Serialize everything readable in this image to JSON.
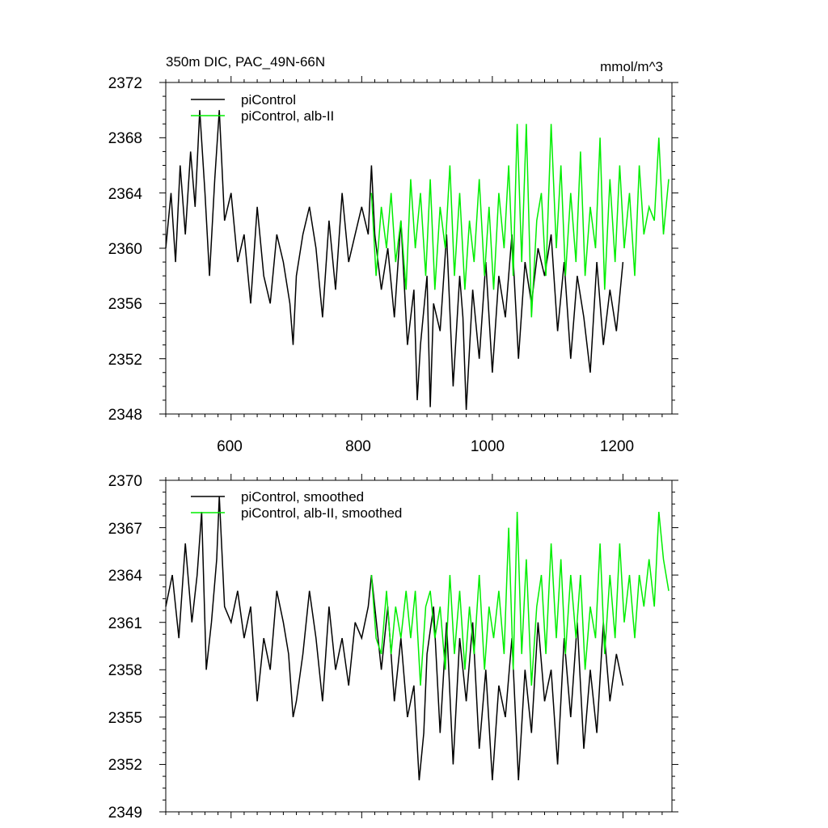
{
  "chart_data": [
    {
      "type": "line",
      "title": "350m DIC, PAC_49N-66N",
      "units": "mmol/m^3",
      "xlim": [
        500,
        1275
      ],
      "ylim": [
        2348,
        2372
      ],
      "x_ticks": [
        600,
        800,
        1000,
        1200
      ],
      "x_tick_labels": [
        "600",
        "800",
        "1000",
        "1200"
      ],
      "y_ticks": [
        2348,
        2352,
        2356,
        2360,
        2364,
        2368,
        2372
      ],
      "y_tick_labels": [
        "2348",
        "2352",
        "2356",
        "2360",
        "2364",
        "2368",
        "2372"
      ],
      "legend_position": "top-left",
      "series": [
        {
          "name": "piControl",
          "color": "#000000",
          "x_range": [
            500,
            1200
          ],
          "x": [
            500,
            508,
            515,
            522,
            530,
            538,
            545,
            552,
            560,
            567,
            575,
            582,
            590,
            600,
            610,
            620,
            630,
            640,
            650,
            660,
            670,
            680,
            690,
            695,
            700,
            710,
            720,
            730,
            740,
            750,
            760,
            770,
            780,
            790,
            800,
            810,
            815,
            820,
            830,
            840,
            850,
            860,
            870,
            880,
            885,
            890,
            900,
            905,
            910,
            920,
            930,
            940,
            950,
            955,
            960,
            970,
            980,
            990,
            1000,
            1010,
            1020,
            1030,
            1040,
            1050,
            1060,
            1070,
            1080,
            1090,
            1100,
            1110,
            1120,
            1130,
            1140,
            1150,
            1160,
            1170,
            1180,
            1190,
            1200
          ],
          "y": [
            2360,
            2364,
            2359,
            2366,
            2361,
            2367,
            2363,
            2370,
            2364,
            2358,
            2365,
            2370,
            2362,
            2364,
            2359,
            2361,
            2356,
            2363,
            2358,
            2356,
            2361,
            2359,
            2356,
            2353,
            2358,
            2361,
            2363,
            2360,
            2355,
            2362,
            2357,
            2364,
            2359,
            2361,
            2363,
            2361,
            2366,
            2361,
            2357,
            2360,
            2355,
            2362,
            2353,
            2357,
            2349,
            2353,
            2358,
            2348.5,
            2356,
            2354,
            2361,
            2350,
            2358,
            2355,
            2348.3,
            2357,
            2352,
            2359,
            2351,
            2358,
            2355,
            2361,
            2352,
            2359,
            2356,
            2360,
            2358,
            2361,
            2354,
            2359,
            2352,
            2358,
            2355,
            2351,
            2359,
            2353,
            2357,
            2354,
            2359
          ]
        },
        {
          "name": "piControl, alb-II",
          "color": "#00ee00",
          "x_range": [
            815,
            1270
          ],
          "x": [
            815,
            822,
            830,
            838,
            845,
            852,
            860,
            868,
            875,
            882,
            890,
            898,
            905,
            912,
            920,
            928,
            935,
            942,
            950,
            958,
            965,
            972,
            980,
            988,
            995,
            1002,
            1010,
            1018,
            1025,
            1032,
            1038,
            1045,
            1052,
            1060,
            1068,
            1075,
            1082,
            1090,
            1098,
            1105,
            1112,
            1120,
            1128,
            1135,
            1142,
            1150,
            1158,
            1165,
            1172,
            1180,
            1188,
            1195,
            1202,
            1210,
            1218,
            1225,
            1232,
            1240,
            1248,
            1255,
            1262,
            1270
          ],
          "y": [
            2364,
            2358,
            2363,
            2360,
            2364,
            2359,
            2362,
            2357,
            2365,
            2360,
            2364,
            2358,
            2365,
            2357,
            2363,
            2360,
            2366,
            2358,
            2364,
            2357,
            2362,
            2359,
            2365,
            2358,
            2363,
            2357,
            2364,
            2360,
            2366,
            2358,
            2369,
            2359,
            2369,
            2355,
            2362,
            2364,
            2358,
            2369,
            2360,
            2366,
            2358,
            2364,
            2359,
            2367,
            2358,
            2363,
            2360,
            2368,
            2357,
            2365,
            2359,
            2366,
            2360,
            2364,
            2358,
            2366,
            2361,
            2363,
            2362,
            2368,
            2361,
            2365
          ]
        }
      ]
    },
    {
      "type": "line",
      "title": "",
      "xlim": [
        500,
        1275
      ],
      "ylim": [
        2349,
        2370
      ],
      "x_ticks": [
        600,
        800,
        1000,
        1200
      ],
      "y_ticks": [
        2349,
        2352,
        2355,
        2358,
        2361,
        2364,
        2367,
        2370
      ],
      "y_tick_labels": [
        "2349",
        "2352",
        "2355",
        "2358",
        "2361",
        "2364",
        "2367",
        "2370"
      ],
      "legend_position": "top-left",
      "series": [
        {
          "name": "piControl, smoothed",
          "color": "#000000",
          "x_range": [
            500,
            1200
          ],
          "x": [
            500,
            510,
            520,
            530,
            540,
            548,
            555,
            562,
            570,
            578,
            582,
            590,
            600,
            610,
            620,
            630,
            640,
            650,
            660,
            670,
            680,
            688,
            695,
            700,
            710,
            720,
            730,
            740,
            750,
            760,
            770,
            780,
            790,
            800,
            810,
            815,
            820,
            830,
            840,
            850,
            860,
            870,
            880,
            888,
            895,
            900,
            910,
            920,
            930,
            940,
            950,
            960,
            970,
            980,
            990,
            1000,
            1010,
            1020,
            1030,
            1040,
            1050,
            1060,
            1070,
            1080,
            1090,
            1100,
            1110,
            1120,
            1130,
            1140,
            1150,
            1160,
            1170,
            1180,
            1190,
            1200
          ],
          "y": [
            2362,
            2364,
            2360,
            2366,
            2361,
            2364,
            2368,
            2358,
            2361,
            2365,
            2369,
            2362,
            2361,
            2363,
            2360,
            2362,
            2356,
            2360,
            2358,
            2363,
            2361,
            2359,
            2355,
            2356,
            2359,
            2363,
            2360,
            2356,
            2362,
            2358,
            2360,
            2357,
            2361,
            2360,
            2362,
            2364,
            2362,
            2358,
            2362,
            2356,
            2360,
            2355,
            2357,
            2351,
            2354,
            2359,
            2362,
            2354,
            2361,
            2352,
            2360,
            2356,
            2361,
            2353,
            2358,
            2351,
            2357,
            2355,
            2360,
            2351,
            2358,
            2354,
            2361,
            2356,
            2358,
            2352,
            2360,
            2355,
            2361,
            2353,
            2358,
            2354,
            2361,
            2356,
            2359,
            2357
          ]
        },
        {
          "name": "piControl, alb-II, smoothed",
          "color": "#00ee00",
          "x_range": [
            815,
            1270
          ],
          "x": [
            815,
            822,
            830,
            838,
            845,
            852,
            860,
            868,
            875,
            882,
            890,
            898,
            905,
            912,
            920,
            928,
            935,
            942,
            950,
            958,
            965,
            972,
            980,
            988,
            995,
            1002,
            1010,
            1018,
            1025,
            1032,
            1038,
            1045,
            1052,
            1060,
            1068,
            1075,
            1082,
            1090,
            1098,
            1105,
            1112,
            1120,
            1128,
            1135,
            1142,
            1150,
            1158,
            1165,
            1172,
            1180,
            1188,
            1195,
            1202,
            1210,
            1218,
            1225,
            1232,
            1240,
            1248,
            1255,
            1262,
            1270
          ],
          "y": [
            2364,
            2360,
            2359,
            2363,
            2359,
            2362,
            2360,
            2363,
            2360,
            2363,
            2357,
            2362,
            2363,
            2360,
            2362,
            2358,
            2364,
            2359,
            2363,
            2358,
            2362,
            2359,
            2364,
            2358,
            2362,
            2360,
            2363,
            2359,
            2367,
            2358,
            2368,
            2359,
            2365,
            2357,
            2362,
            2364,
            2359,
            2366,
            2360,
            2365,
            2359,
            2364,
            2360,
            2364,
            2358,
            2362,
            2360,
            2366,
            2359,
            2364,
            2360,
            2366,
            2361,
            2364,
            2360,
            2364,
            2362,
            2365,
            2362,
            2368,
            2365,
            2363
          ]
        }
      ]
    }
  ]
}
